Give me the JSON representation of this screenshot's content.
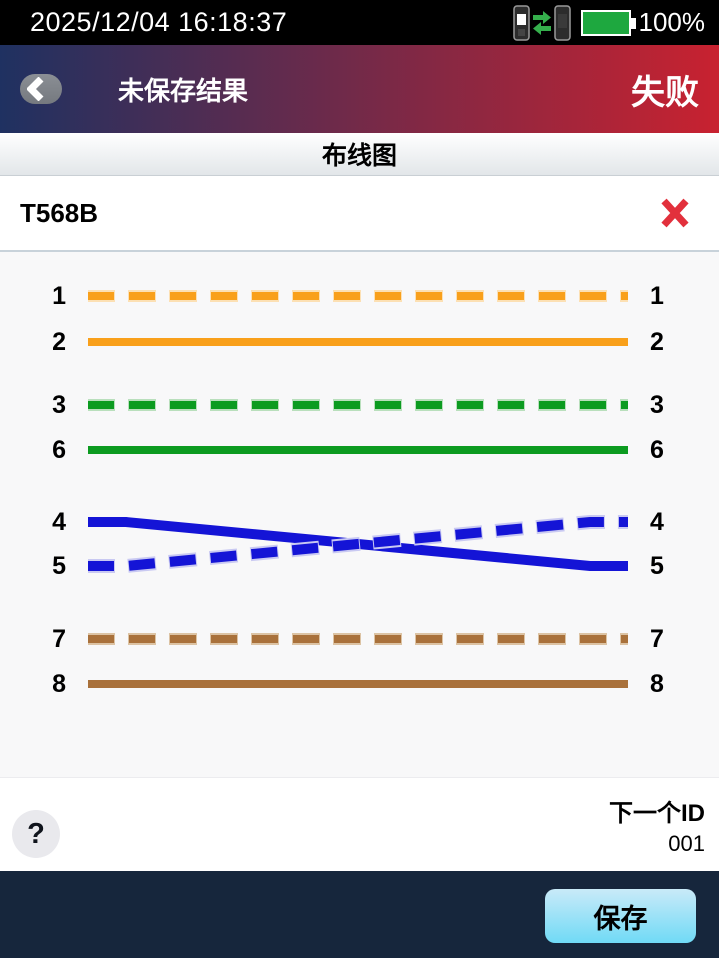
{
  "status_bar": {
    "datetime": "2025/12/04 16:18:37",
    "battery_percent": "100%",
    "battery_color": "#1ea83f",
    "link_arrow_color": "#35af4c"
  },
  "header": {
    "title": "未保存结果",
    "status": "失败",
    "gradient_left": "#1f3161",
    "gradient_right": "#c82230"
  },
  "tab": {
    "title": "布线图"
  },
  "result": {
    "standard": "T568B",
    "status_icon": "fail-x",
    "fail_color": "#e2303c"
  },
  "wiremap": {
    "left_pins": [
      "1",
      "2",
      "3",
      "6",
      "4",
      "5",
      "7",
      "8"
    ],
    "right_pins": [
      "1",
      "2",
      "3",
      "6",
      "4",
      "5",
      "7",
      "8"
    ],
    "connections": [
      {
        "from": "1",
        "to": "1",
        "style": "dashed",
        "color": "#f9a01b",
        "halo": "#fce0b4"
      },
      {
        "from": "2",
        "to": "2",
        "style": "solid",
        "color": "#f9a01b",
        "halo": "#fce0b4"
      },
      {
        "from": "3",
        "to": "3",
        "style": "dashed",
        "color": "#0c9b20",
        "halo": "#b9dfbc"
      },
      {
        "from": "6",
        "to": "6",
        "style": "solid",
        "color": "#0c9b20",
        "halo": "#b9dfbc"
      },
      {
        "from": "4",
        "to": "5",
        "style": "solid",
        "color": "#1414d6",
        "halo": "#c9c9f2"
      },
      {
        "from": "5",
        "to": "4",
        "style": "dashed",
        "color": "#1414d6",
        "halo": "#c9c9f2"
      },
      {
        "from": "7",
        "to": "7",
        "style": "dashed",
        "color": "#a9713b",
        "halo": "#dcc3a4"
      },
      {
        "from": "8",
        "to": "8",
        "style": "solid",
        "color": "#a9713b",
        "halo": "#dcc3a4"
      }
    ]
  },
  "footer": {
    "help_label": "?",
    "next_id_label": "下一个ID",
    "next_id_value": "001"
  },
  "bottom_bar": {
    "save_label": "保存"
  }
}
